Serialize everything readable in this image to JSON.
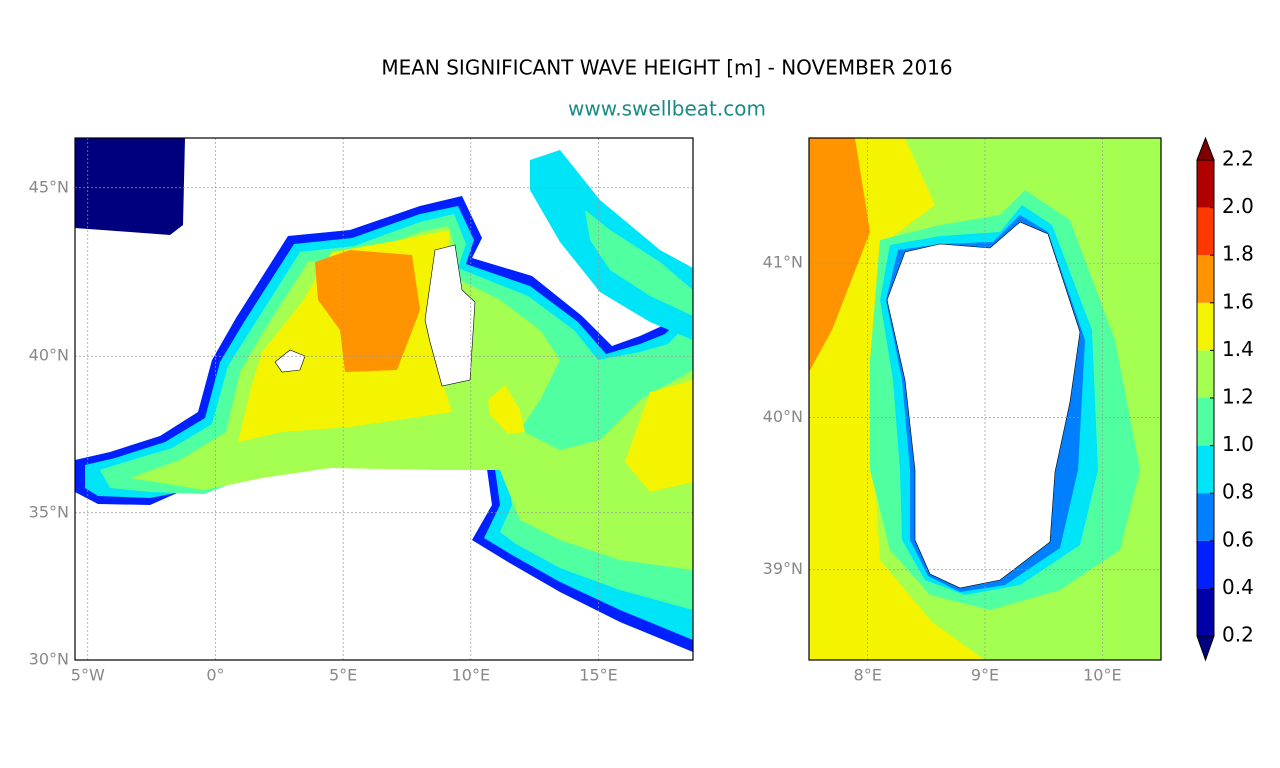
{
  "title": "MEAN SIGNIFICANT WAVE HEIGHT [m] - NOVEMBER 2016",
  "subtitle": "www.swellbeat.com",
  "grid": true,
  "maps": [
    {
      "xlim": [
        -5.5,
        18.7
      ],
      "ylim": [
        30,
        46.4
      ],
      "xticks": [
        {
          "value": -5,
          "label": "5°W"
        },
        {
          "value": 0,
          "label": "0°"
        },
        {
          "value": 5,
          "label": "5°E"
        },
        {
          "value": 10,
          "label": "10°E"
        },
        {
          "value": 15,
          "label": "15°E"
        }
      ],
      "yticks": [
        {
          "value": 30,
          "label": "30°N"
        },
        {
          "value": 35,
          "label": "35°N"
        },
        {
          "value": 40,
          "label": "40°N"
        },
        {
          "value": 45,
          "label": "45°N"
        }
      ]
    },
    {
      "xlim": [
        7.5,
        10.5
      ],
      "ylim": [
        38.4,
        41.8
      ],
      "xticks": [
        {
          "value": 8,
          "label": "8°E"
        },
        {
          "value": 9,
          "label": "9°E"
        },
        {
          "value": 10,
          "label": "10°E"
        }
      ],
      "yticks": [
        {
          "value": 39,
          "label": "39°N"
        },
        {
          "value": 40,
          "label": "40°N"
        },
        {
          "value": 41,
          "label": "41°N"
        }
      ]
    }
  ],
  "colorbar": {
    "ticks": [
      0.2,
      0.4,
      0.6,
      0.8,
      1.0,
      1.2,
      1.4,
      1.6,
      1.8,
      2.0,
      2.2
    ],
    "colors": [
      "#0000a8",
      "#0020ff",
      "#0080ff",
      "#00e4f8",
      "#50ffa0",
      "#a4ff50",
      "#f4f400",
      "#ff9400",
      "#ff3800",
      "#b00000"
    ],
    "extend_colors": [
      "#00007f",
      "#7f0000"
    ]
  }
}
